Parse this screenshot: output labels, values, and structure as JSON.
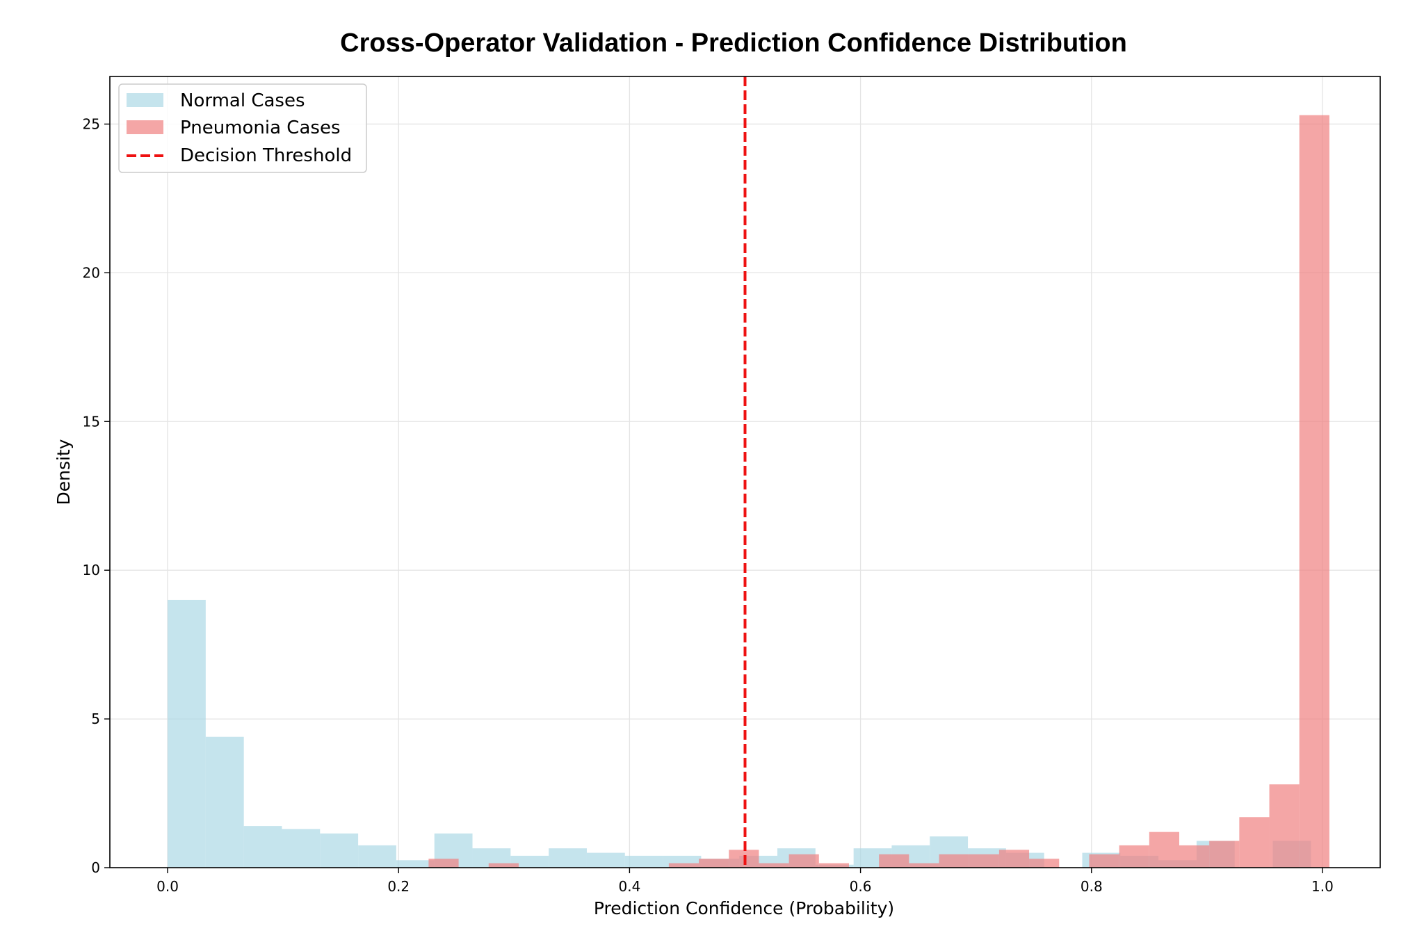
{
  "chart_data": {
    "type": "histogram",
    "title": "Cross-Operator Validation - Prediction Confidence Distribution",
    "xlabel": "Prediction Confidence (Probability)",
    "ylabel": "Density",
    "xlim": [
      -0.05,
      1.05
    ],
    "ylim": [
      0,
      26.6
    ],
    "xticks": [
      "0.0",
      "0.2",
      "0.4",
      "0.6",
      "0.8",
      "1.0"
    ],
    "xtick_values": [
      0.0,
      0.2,
      0.4,
      0.6,
      0.8,
      1.0
    ],
    "yticks": [
      "0",
      "5",
      "10",
      "15",
      "20",
      "25"
    ],
    "ytick_values": [
      0,
      5,
      10,
      15,
      20,
      25
    ],
    "grid": true,
    "legend_position": "top-left",
    "threshold": {
      "name": "Decision Threshold",
      "x": 0.5,
      "color": "#ee1111",
      "style": "dashed"
    },
    "series": [
      {
        "name": "Normal Cases",
        "color": "#add8e6",
        "opacity": 0.7,
        "bins": [
          {
            "x0": 0.0,
            "x1": 0.033,
            "y": 9.0
          },
          {
            "x0": 0.033,
            "x1": 0.066,
            "y": 4.4
          },
          {
            "x0": 0.066,
            "x1": 0.099,
            "y": 1.4
          },
          {
            "x0": 0.099,
            "x1": 0.132,
            "y": 1.3
          },
          {
            "x0": 0.132,
            "x1": 0.165,
            "y": 1.15
          },
          {
            "x0": 0.165,
            "x1": 0.198,
            "y": 0.75
          },
          {
            "x0": 0.198,
            "x1": 0.231,
            "y": 0.25
          },
          {
            "x0": 0.231,
            "x1": 0.264,
            "y": 1.15
          },
          {
            "x0": 0.264,
            "x1": 0.297,
            "y": 0.65
          },
          {
            "x0": 0.297,
            "x1": 0.33,
            "y": 0.4
          },
          {
            "x0": 0.33,
            "x1": 0.363,
            "y": 0.65
          },
          {
            "x0": 0.363,
            "x1": 0.396,
            "y": 0.5
          },
          {
            "x0": 0.396,
            "x1": 0.429,
            "y": 0.4
          },
          {
            "x0": 0.429,
            "x1": 0.462,
            "y": 0.4
          },
          {
            "x0": 0.462,
            "x1": 0.495,
            "y": 0.3
          },
          {
            "x0": 0.495,
            "x1": 0.528,
            "y": 0.4
          },
          {
            "x0": 0.528,
            "x1": 0.561,
            "y": 0.65
          },
          {
            "x0": 0.561,
            "x1": 0.594,
            "y": 0.1
          },
          {
            "x0": 0.594,
            "x1": 0.627,
            "y": 0.65
          },
          {
            "x0": 0.627,
            "x1": 0.66,
            "y": 0.75
          },
          {
            "x0": 0.66,
            "x1": 0.693,
            "y": 1.05
          },
          {
            "x0": 0.693,
            "x1": 0.726,
            "y": 0.65
          },
          {
            "x0": 0.726,
            "x1": 0.759,
            "y": 0.5
          },
          {
            "x0": 0.759,
            "x1": 0.792,
            "y": 0.0
          },
          {
            "x0": 0.792,
            "x1": 0.825,
            "y": 0.5
          },
          {
            "x0": 0.825,
            "x1": 0.858,
            "y": 0.4
          },
          {
            "x0": 0.858,
            "x1": 0.891,
            "y": 0.25
          },
          {
            "x0": 0.891,
            "x1": 0.924,
            "y": 0.9
          },
          {
            "x0": 0.924,
            "x1": 0.957,
            "y": 0.0
          },
          {
            "x0": 0.957,
            "x1": 0.99,
            "y": 0.9
          }
        ]
      },
      {
        "name": "Pneumonia Cases",
        "color": "#f08080",
        "opacity": 0.7,
        "bins": [
          {
            "x0": 0.226,
            "x1": 0.252,
            "y": 0.3
          },
          {
            "x0": 0.278,
            "x1": 0.304,
            "y": 0.15
          },
          {
            "x0": 0.434,
            "x1": 0.46,
            "y": 0.15
          },
          {
            "x0": 0.46,
            "x1": 0.486,
            "y": 0.3
          },
          {
            "x0": 0.486,
            "x1": 0.512,
            "y": 0.6
          },
          {
            "x0": 0.512,
            "x1": 0.538,
            "y": 0.15
          },
          {
            "x0": 0.538,
            "x1": 0.564,
            "y": 0.45
          },
          {
            "x0": 0.564,
            "x1": 0.59,
            "y": 0.15
          },
          {
            "x0": 0.616,
            "x1": 0.642,
            "y": 0.45
          },
          {
            "x0": 0.642,
            "x1": 0.668,
            "y": 0.15
          },
          {
            "x0": 0.668,
            "x1": 0.694,
            "y": 0.45
          },
          {
            "x0": 0.694,
            "x1": 0.72,
            "y": 0.45
          },
          {
            "x0": 0.72,
            "x1": 0.746,
            "y": 0.6
          },
          {
            "x0": 0.746,
            "x1": 0.772,
            "y": 0.3
          },
          {
            "x0": 0.798,
            "x1": 0.824,
            "y": 0.45
          },
          {
            "x0": 0.824,
            "x1": 0.85,
            "y": 0.75
          },
          {
            "x0": 0.85,
            "x1": 0.876,
            "y": 1.2
          },
          {
            "x0": 0.876,
            "x1": 0.902,
            "y": 0.75
          },
          {
            "x0": 0.902,
            "x1": 0.928,
            "y": 0.9
          },
          {
            "x0": 0.928,
            "x1": 0.954,
            "y": 1.7
          },
          {
            "x0": 0.954,
            "x1": 0.98,
            "y": 2.8
          },
          {
            "x0": 0.98,
            "x1": 1.006,
            "y": 25.3
          }
        ]
      }
    ]
  }
}
